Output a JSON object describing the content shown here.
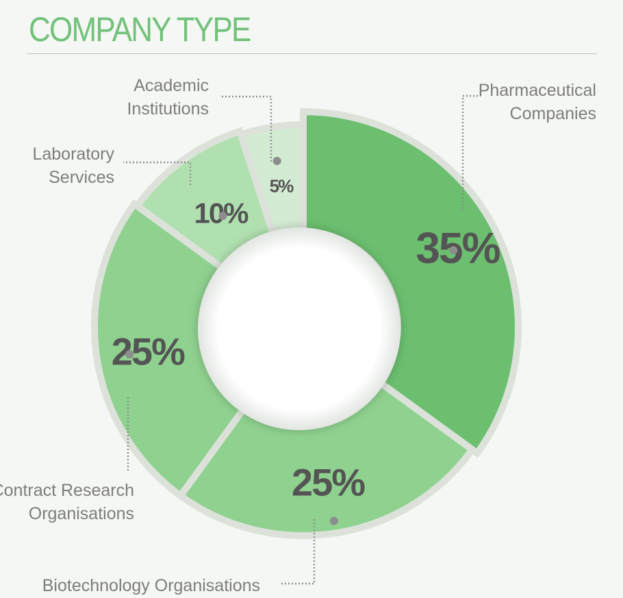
{
  "title": "COMPANY TYPE",
  "colors": {
    "title": "#72c17a",
    "rule": "#b9c4b7",
    "separator": "#dce2da",
    "value_text": "#545454",
    "callout_text": "#7d7d7d",
    "leader": "#8d8d8d"
  },
  "chart_data": {
    "type": "pie",
    "donut": true,
    "title": "COMPANY TYPE",
    "slices": [
      {
        "label": "Pharmaceutical Companies",
        "label_lines": [
          "Pharmaceutical",
          "Companies"
        ],
        "value": 35,
        "value_label": "35%",
        "color": "#6bbf6f"
      },
      {
        "label": "Biotechnology Organisations",
        "label_lines": [
          "Biotechnology Organisations"
        ],
        "value": 25,
        "value_label": "25%",
        "color": "#8fd18f"
      },
      {
        "label": "Contract Research Organisations",
        "label_lines": [
          "Contract Research",
          "Organisations"
        ],
        "value": 25,
        "value_label": "25%",
        "color": "#8fd18f"
      },
      {
        "label": "Laboratory Services",
        "label_lines": [
          "Laboratory",
          "Services"
        ],
        "value": 10,
        "value_label": "10%",
        "color": "#b0e0b0"
      },
      {
        "label": "Academic Institutions",
        "label_lines": [
          "Academic",
          "Institutions"
        ],
        "value": 5,
        "value_label": "5%",
        "color": "#d3ebd3"
      }
    ]
  }
}
